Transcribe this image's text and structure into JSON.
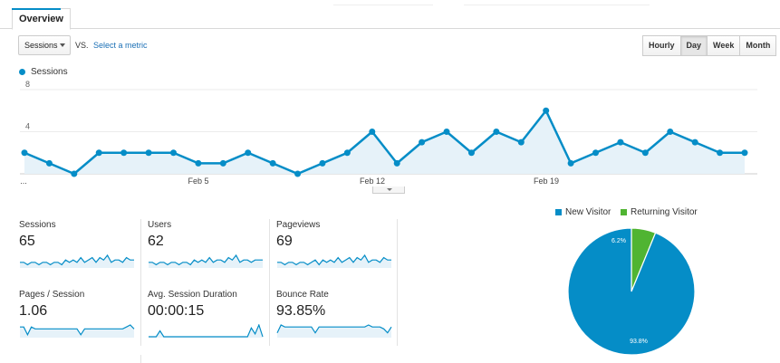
{
  "tab": {
    "label": "Overview"
  },
  "controls": {
    "metric_select": "Sessions",
    "vs_label": "VS.",
    "select_metric_link": "Select a metric",
    "granularity": [
      {
        "label": "Hourly",
        "active": false
      },
      {
        "label": "Day",
        "active": true
      },
      {
        "label": "Week",
        "active": false
      },
      {
        "label": "Month",
        "active": false
      }
    ]
  },
  "chart_legend": {
    "series_name": "Sessions"
  },
  "chart_data": [
    {
      "type": "area",
      "series": [
        {
          "name": "Sessions",
          "color": "#058dc7",
          "values": [
            2,
            1,
            0,
            2,
            2,
            2,
            2,
            1,
            1,
            2,
            1,
            0,
            1,
            2,
            4,
            1,
            3,
            4,
            2,
            4,
            3,
            6,
            1,
            2,
            3,
            2,
            4,
            3,
            2,
            2
          ]
        }
      ],
      "ylim": [
        0,
        8
      ],
      "y_ticks": [
        "8",
        "4"
      ],
      "x_tick_labels": [
        "...",
        "Feb 5",
        "Feb 12",
        "Feb 19"
      ],
      "grid": true,
      "legend": "top-left"
    },
    {
      "type": "pie",
      "categories": [
        "New Visitor",
        "Returning Visitor"
      ],
      "values": [
        93.8,
        6.2
      ],
      "colors": [
        "#058dc7",
        "#50b432"
      ],
      "data_labels": [
        "93.8%",
        "6.2%"
      ],
      "legend": "top"
    }
  ],
  "stats": [
    {
      "label": "Sessions",
      "value": "65",
      "spark": [
        2,
        2,
        1,
        2,
        2,
        1,
        2,
        2,
        1,
        2,
        2,
        1,
        3,
        2,
        3,
        2,
        4,
        2,
        3,
        4,
        2,
        4,
        3,
        5,
        2,
        3,
        3,
        2,
        4,
        3,
        3
      ]
    },
    {
      "label": "Users",
      "value": "62",
      "spark": [
        2,
        2,
        1,
        2,
        2,
        1,
        2,
        2,
        1,
        2,
        2,
        1,
        3,
        2,
        3,
        2,
        4,
        2,
        3,
        3,
        2,
        4,
        3,
        5,
        2,
        3,
        3,
        2,
        3,
        3,
        3
      ]
    },
    {
      "label": "Pageviews",
      "value": "69",
      "spark": [
        2,
        2,
        1,
        2,
        2,
        1,
        2,
        2,
        1,
        2,
        3,
        1,
        3,
        2,
        3,
        2,
        4,
        2,
        3,
        4,
        2,
        4,
        3,
        5,
        2,
        3,
        3,
        2,
        4,
        3,
        3
      ]
    },
    {
      "label": "Pages / Session",
      "value": "1.06",
      "spark": [
        5,
        5,
        1,
        5,
        4,
        4,
        4,
        4,
        4,
        4,
        4,
        4,
        4,
        4,
        4,
        4,
        1,
        4,
        4,
        4,
        4,
        4,
        4,
        4,
        4,
        4,
        4,
        4,
        5,
        6,
        4
      ]
    },
    {
      "label": "Avg. Session Duration",
      "value": "00:00:15",
      "spark": [
        0,
        0,
        0,
        2,
        0,
        0,
        0,
        0,
        0,
        0,
        0,
        0,
        0,
        0,
        0,
        0,
        0,
        0,
        0,
        0,
        0,
        0,
        0,
        0,
        0,
        0,
        0,
        3,
        1,
        4,
        0
      ]
    },
    {
      "label": "Bounce Rate",
      "value": "93.85%",
      "spark": [
        2,
        6,
        5,
        5,
        5,
        5,
        5,
        5,
        5,
        5,
        2,
        5,
        5,
        5,
        5,
        5,
        5,
        5,
        5,
        5,
        5,
        5,
        5,
        5,
        6,
        5,
        5,
        5,
        4,
        2,
        5
      ]
    }
  ],
  "colors": {
    "accent": "#058dc7",
    "returning": "#50b432",
    "link": "#1a6fb5"
  }
}
